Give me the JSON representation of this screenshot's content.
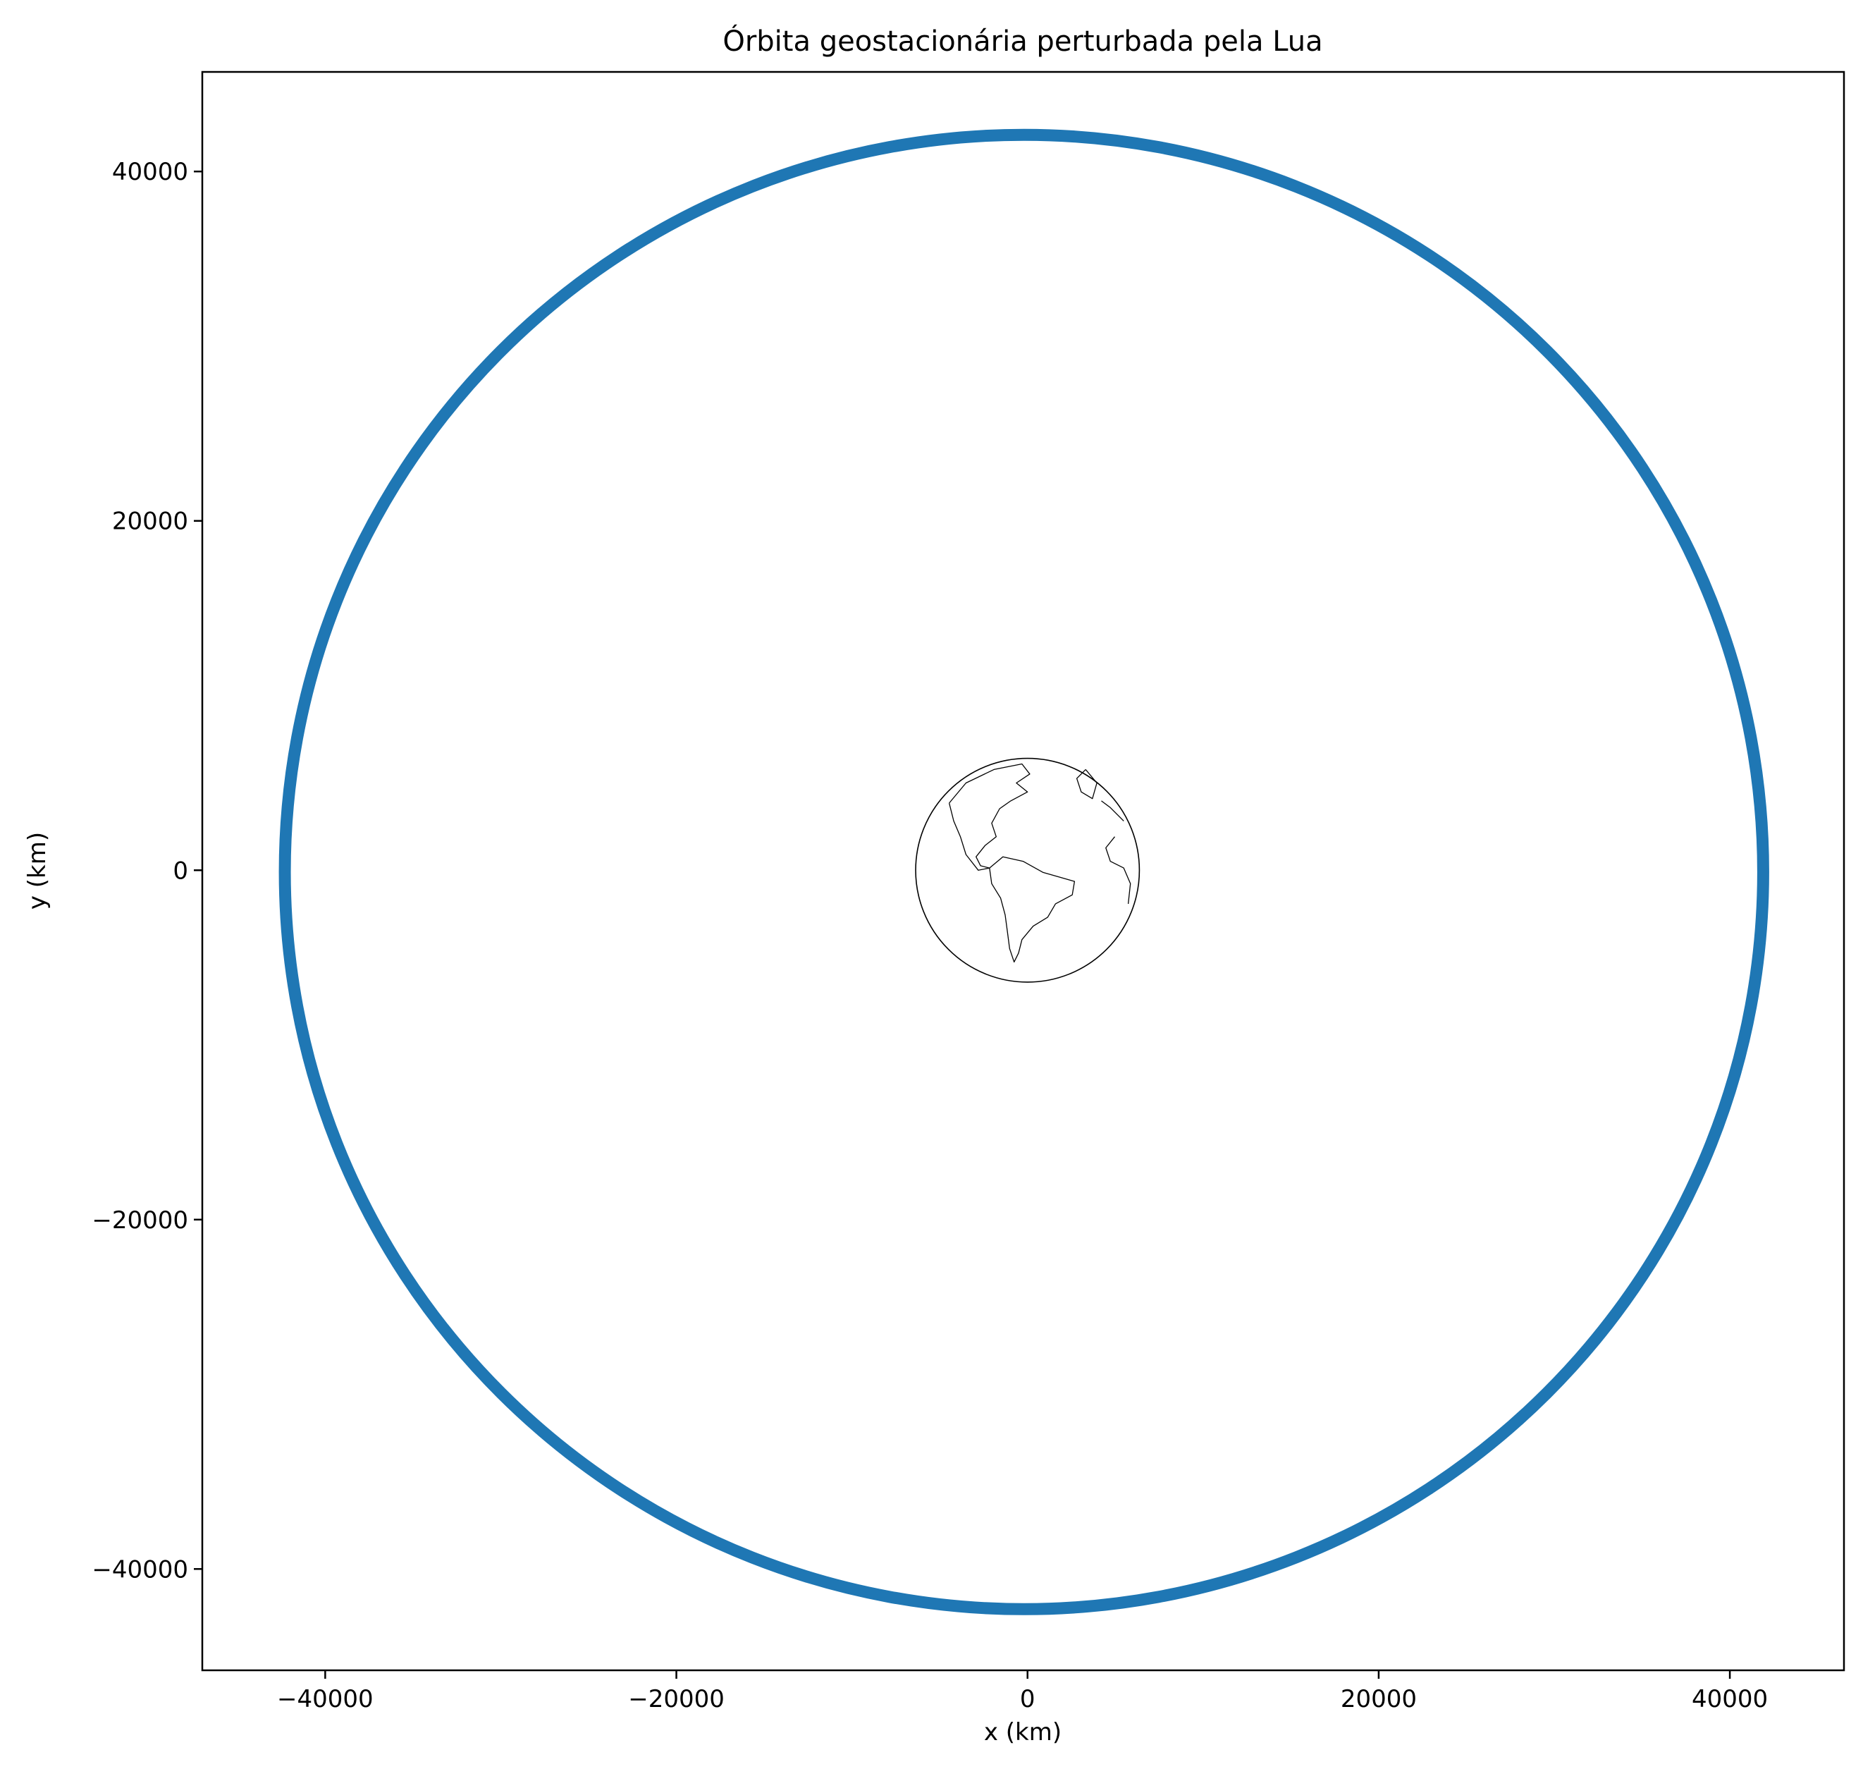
{
  "chart_data": {
    "type": "line",
    "title": "Órbita geostacionária perturbada pela Lua",
    "xlabel": "x (km)",
    "ylabel": "y (km)",
    "xlim": [
      -47000,
      46500
    ],
    "ylim": [
      -45800,
      45700
    ],
    "xticks": [
      -40000,
      -20000,
      0,
      20000,
      40000
    ],
    "yticks": [
      -40000,
      -20000,
      0,
      20000,
      40000
    ],
    "xtick_labels": [
      "−40000",
      "−20000",
      "0",
      "20000",
      "40000"
    ],
    "ytick_labels": [
      "−40000",
      "−20000",
      "0",
      "20000",
      "40000"
    ],
    "grid": false,
    "series": [
      {
        "color": "#1f77b4",
        "shape": "circle",
        "center": [
          -200,
          -100
        ],
        "radius_x": 42100,
        "radius_y": 42200
      }
    ],
    "earth_image": {
      "center": [
        0,
        0
      ],
      "radius": 6371,
      "features": [
        "north-america",
        "south-america",
        "greenland",
        "africa-coast",
        "europe-coast"
      ]
    }
  }
}
